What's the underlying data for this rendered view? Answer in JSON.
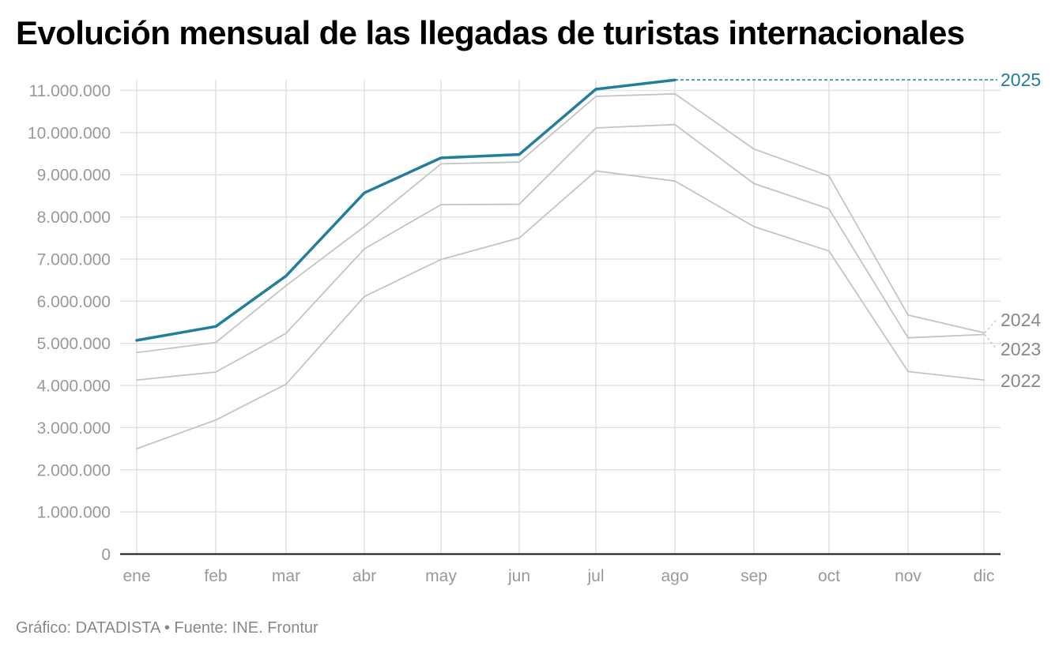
{
  "title": "Evolución mensual de las llegadas de turistas internacionales",
  "footer": "Gráfico: DATADISTA • Fuente: INE. Frontur",
  "colors": {
    "highlight": "#237e9c",
    "muted": "#c4c4c4",
    "mutedLabel": "#888888",
    "grid": "#e2e2e2",
    "tick": "#999999",
    "axis": "#111111"
  },
  "chart_data": {
    "type": "line",
    "title": "Evolución mensual de las llegadas de turistas internacionales",
    "xlabel": "",
    "ylabel": "",
    "categories": [
      "ene",
      "feb",
      "mar",
      "abr",
      "may",
      "jun",
      "jul",
      "ago",
      "sep",
      "oct",
      "nov",
      "dic"
    ],
    "ylim": [
      0,
      11000000
    ],
    "yticks": [
      0,
      1000000,
      2000000,
      3000000,
      4000000,
      5000000,
      6000000,
      7000000,
      8000000,
      9000000,
      10000000,
      11000000
    ],
    "ytick_labels": [
      "0",
      "1.000.000",
      "2.000.000",
      "3.000.000",
      "4.000.000",
      "5.000.000",
      "6.000.000",
      "7.000.000",
      "8.000.000",
      "9.000.000",
      "10.000.000",
      "11.000.000"
    ],
    "series": [
      {
        "name": "2022",
        "highlight": false,
        "values": [
          2500000,
          3180000,
          4030000,
          6110000,
          6990000,
          7500000,
          9090000,
          8850000,
          7770000,
          7190000,
          4330000,
          4130000
        ]
      },
      {
        "name": "2023",
        "highlight": false,
        "values": [
          4130000,
          4320000,
          5240000,
          7240000,
          8290000,
          8300000,
          10110000,
          10190000,
          8790000,
          8190000,
          5130000,
          5210000
        ]
      },
      {
        "name": "2024",
        "highlight": false,
        "values": [
          4780000,
          5020000,
          6370000,
          7770000,
          9260000,
          9300000,
          10860000,
          10920000,
          9610000,
          8970000,
          5670000,
          5250000
        ]
      },
      {
        "name": "2025",
        "highlight": true,
        "values": [
          5070000,
          5400000,
          6600000,
          8570000,
          9400000,
          9480000,
          11030000,
          11250000,
          null,
          null,
          null,
          null
        ]
      }
    ]
  }
}
